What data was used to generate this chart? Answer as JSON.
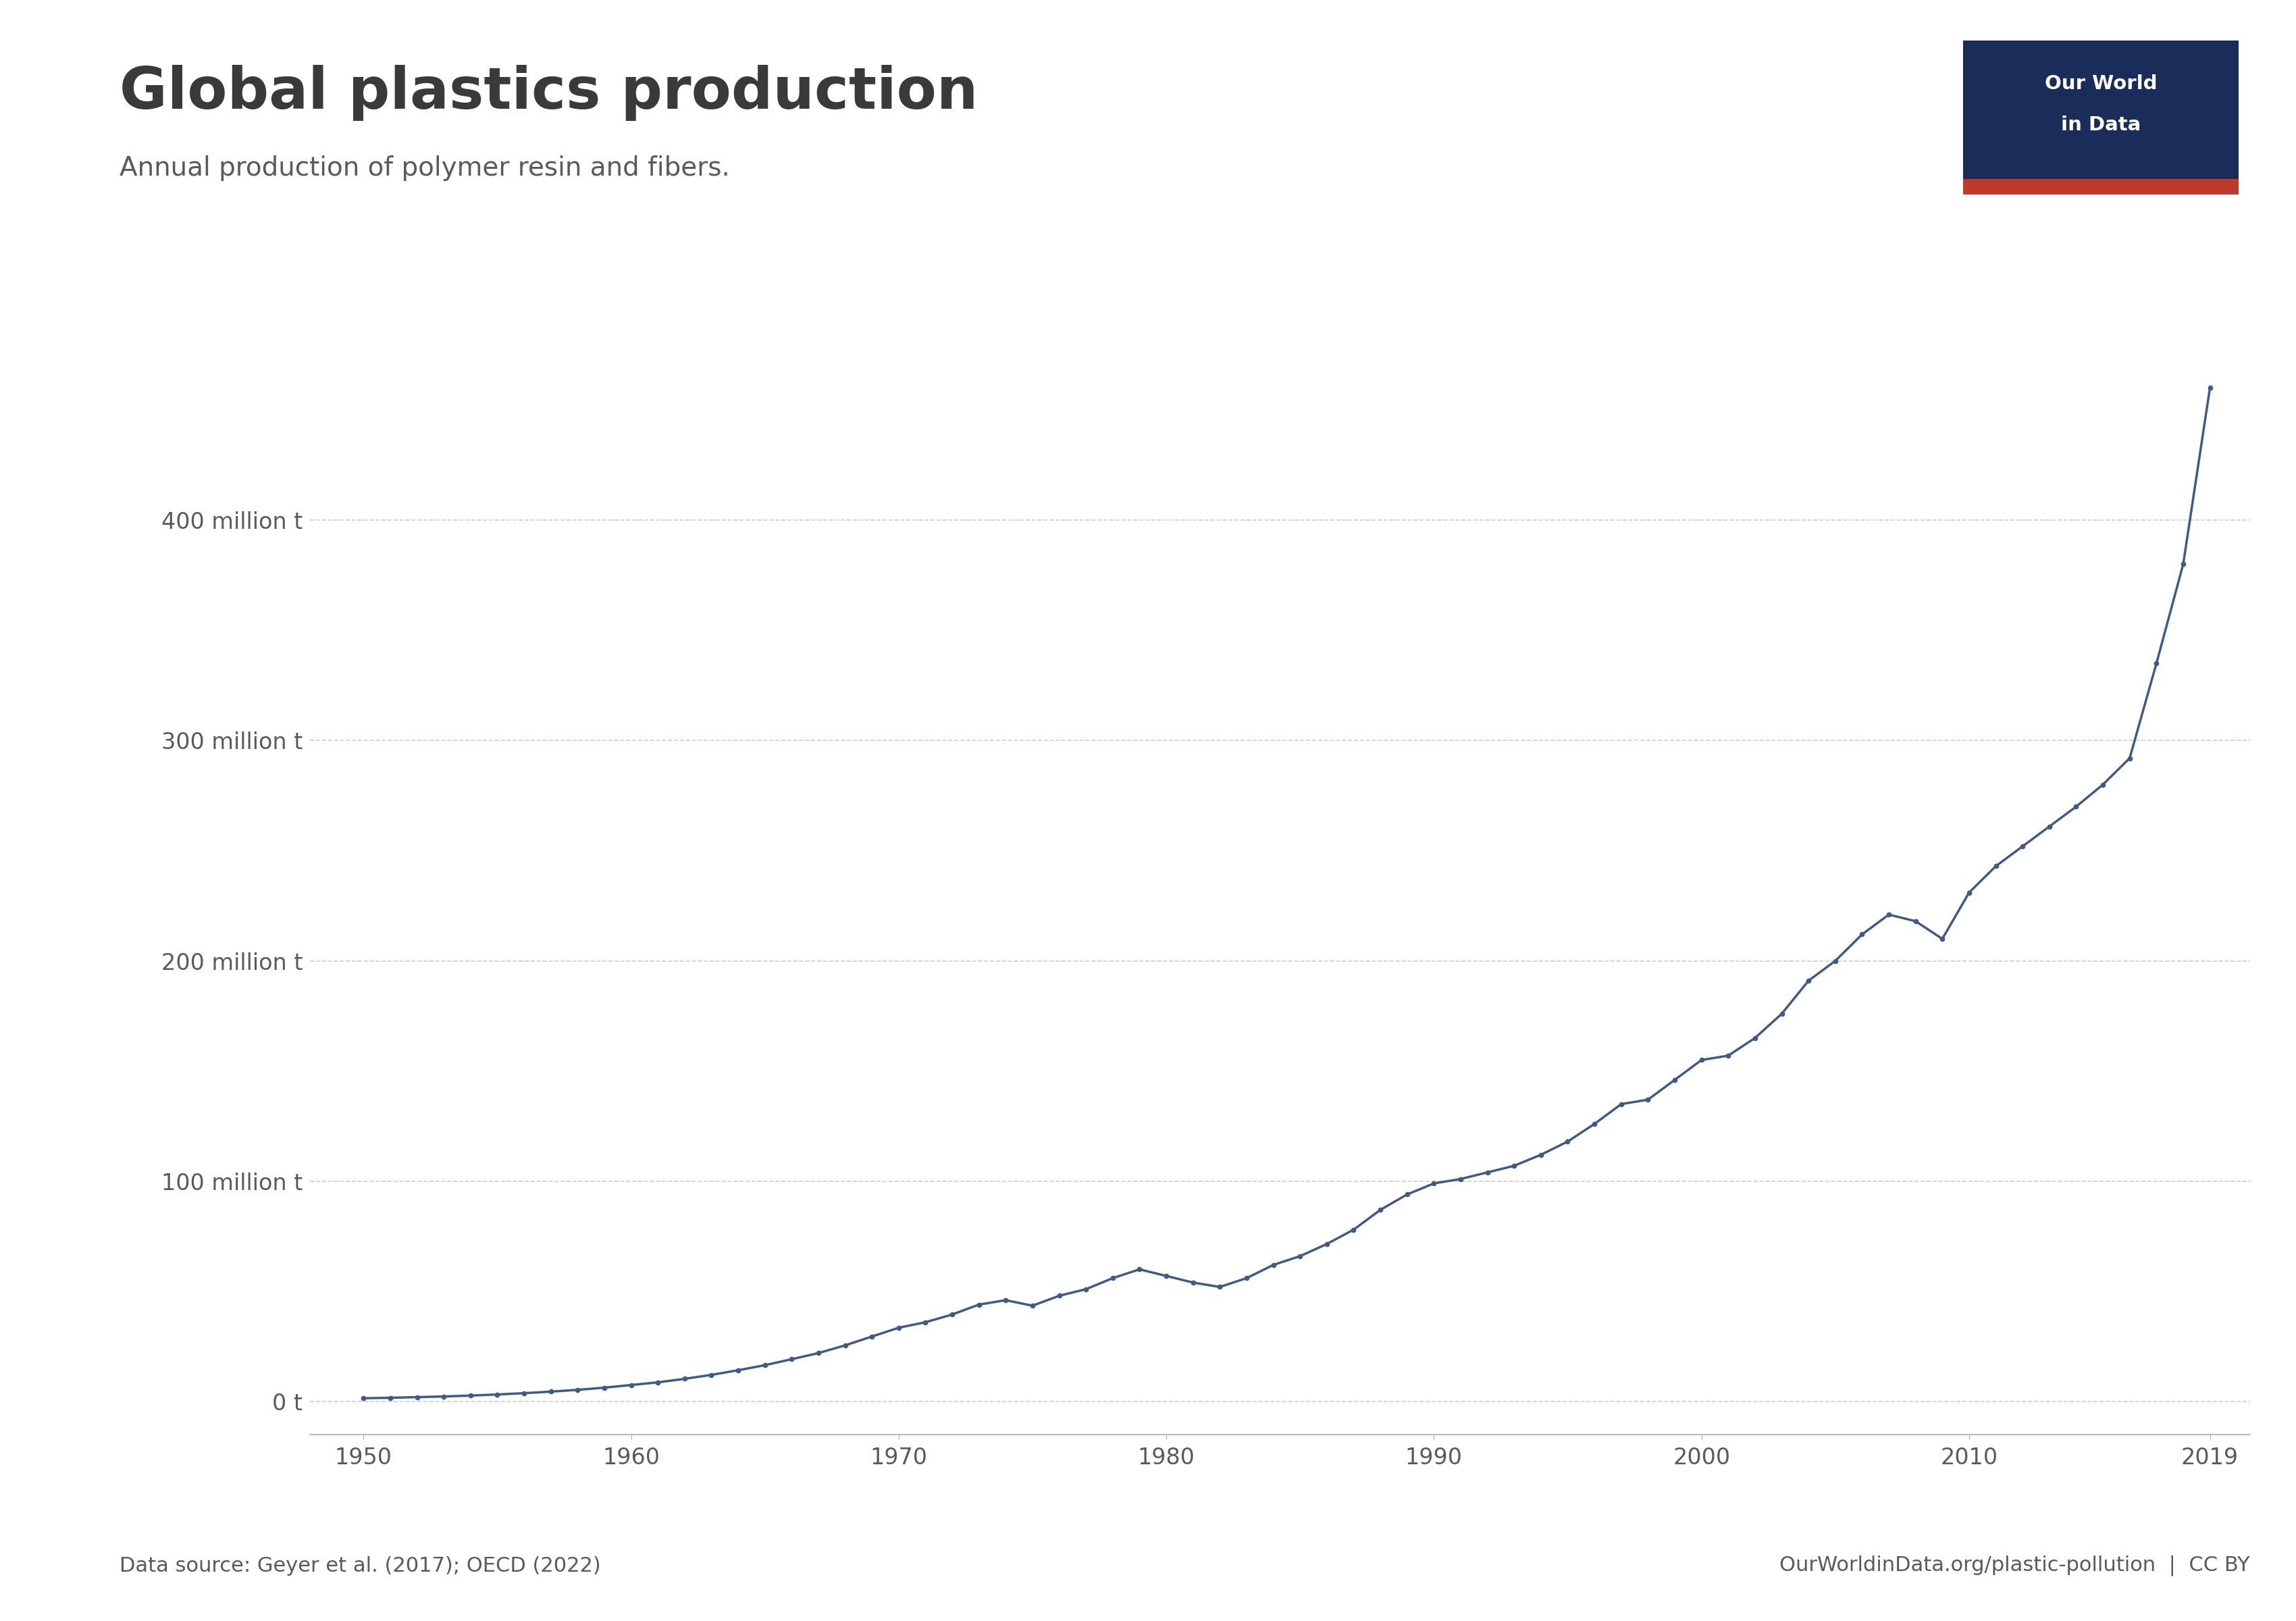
{
  "title": "Global plastics production",
  "subtitle": "Annual production of polymer resin and fibers.",
  "source_left": "Data source: Geyer et al. (2017); OECD (2022)",
  "source_right": "OurWorldinData.org/plastic-pollution  |  CC BY",
  "line_color": "#3d5a8a",
  "background_color": "#ffffff",
  "grid_color": "#c8c8c8",
  "years": [
    1950,
    1951,
    1952,
    1953,
    1954,
    1955,
    1956,
    1957,
    1958,
    1959,
    1960,
    1961,
    1962,
    1963,
    1964,
    1965,
    1966,
    1967,
    1968,
    1969,
    1970,
    1971,
    1972,
    1973,
    1974,
    1975,
    1976,
    1977,
    1978,
    1979,
    1980,
    1981,
    1982,
    1983,
    1984,
    1985,
    1986,
    1987,
    1988,
    1989,
    1990,
    1991,
    1992,
    1993,
    1994,
    1995,
    1996,
    1997,
    1998,
    1999,
    2000,
    2001,
    2002,
    2003,
    2004,
    2005,
    2006,
    2007,
    2008,
    2009,
    2010,
    2011,
    2012,
    2013,
    2014,
    2015,
    2016,
    2017,
    2018,
    2019
  ],
  "production": [
    1.5,
    1.7,
    2.0,
    2.3,
    2.7,
    3.2,
    3.8,
    4.5,
    5.3,
    6.3,
    7.5,
    8.7,
    10.3,
    12.1,
    14.2,
    16.5,
    19.2,
    22.0,
    25.5,
    29.5,
    33.5,
    36.0,
    39.5,
    44.0,
    46.0,
    43.5,
    48.0,
    51.0,
    56.0,
    60.0,
    57.0,
    54.0,
    52.0,
    56.0,
    62.0,
    66.0,
    71.5,
    78.0,
    87.0,
    94.0,
    99.0,
    101.0,
    104.0,
    107.0,
    112.0,
    118.0,
    126.0,
    135.0,
    137.0,
    146.0,
    155.0,
    157.0,
    165.0,
    176.0,
    191.0,
    200.0,
    212.0,
    221.0,
    218.0,
    210.0,
    231.0,
    243.0,
    252.0,
    261.0,
    270.0,
    280.0,
    292.0,
    335.0,
    380.0,
    460.0
  ],
  "ytick_labels": [
    "0 t",
    "100 million t",
    "200 million t",
    "300 million t",
    "400 million t"
  ],
  "ytick_values": [
    0,
    100,
    200,
    300,
    400
  ],
  "xtick_values": [
    1950,
    1960,
    1970,
    1980,
    1990,
    2000,
    2010,
    2019
  ],
  "ylim": [
    -15,
    500
  ],
  "xlim": [
    1948,
    2020.5
  ],
  "owid_bg_color": "#1a2d5a",
  "owid_red_color": "#c0392b",
  "owid_text_color": "#ffffff",
  "title_color": "#3a3a3a",
  "subtitle_color": "#5a5a5a",
  "tick_color": "#5a5a5a",
  "axis_color": "#aaaaaa"
}
